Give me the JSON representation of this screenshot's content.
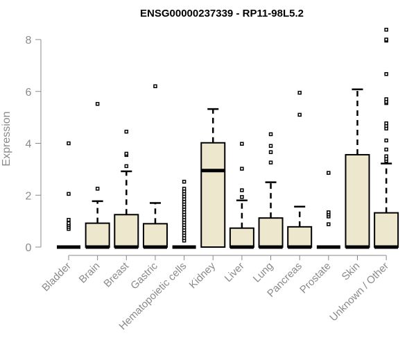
{
  "chart_data": {
    "type": "boxplot",
    "title": "ENSG00000237339 - RP11-98L5.2",
    "xlabel": "",
    "ylabel": "Expression",
    "ylim": [
      0,
      8
    ],
    "yticks": [
      0,
      2,
      4,
      6,
      8
    ],
    "grid": false,
    "box_color": "#ede8cd",
    "categories": [
      "Bladder",
      "Brain",
      "Breast",
      "Gastric",
      "Hematopoietic cells",
      "Kidney",
      "Liver",
      "Lung",
      "Pancreas",
      "Prostate",
      "Skin",
      "Unknown / Other"
    ],
    "boxes": [
      {
        "q1": 0,
        "median": 0,
        "q3": 0,
        "whisker_low": 0,
        "whisker_high": 0,
        "outliers": [
          0.7,
          0.78,
          0.85,
          0.92,
          1.05,
          2.05,
          4.0
        ]
      },
      {
        "q1": 0,
        "median": 0,
        "q3": 0.92,
        "whisker_low": 0,
        "whisker_high": 1.77,
        "outliers": [
          2.25,
          5.52
        ]
      },
      {
        "q1": 0,
        "median": 0,
        "q3": 1.25,
        "whisker_low": 0,
        "whisker_high": 2.92,
        "outliers": [
          3.12,
          3.55,
          3.6,
          4.45
        ]
      },
      {
        "q1": 0,
        "median": 0,
        "q3": 0.9,
        "whisker_low": 0,
        "whisker_high": 1.7,
        "outliers": [
          6.2
        ]
      },
      {
        "q1": 0,
        "median": 0,
        "q3": 0,
        "whisker_low": 0,
        "whisker_high": 0,
        "outliers": [
          0.25,
          0.35,
          0.45,
          0.55,
          0.65,
          0.75,
          0.85,
          0.95,
          1.05,
          1.15,
          1.25,
          1.35,
          1.45,
          1.55,
          1.65,
          1.75,
          1.85,
          1.95,
          2.05,
          2.15,
          2.25,
          2.52
        ]
      },
      {
        "q1": 0,
        "median": 2.95,
        "q3": 4.02,
        "whisker_low": 0,
        "whisker_high": 5.32,
        "outliers": []
      },
      {
        "q1": 0,
        "median": 0,
        "q3": 0.73,
        "whisker_low": 0,
        "whisker_high": 1.8,
        "outliers": [
          1.93,
          2.19,
          3.02,
          3.98
        ]
      },
      {
        "q1": 0,
        "median": 0,
        "q3": 1.12,
        "whisker_low": 0,
        "whisker_high": 2.5,
        "outliers": [
          3.26,
          3.66,
          3.9,
          4.35
        ]
      },
      {
        "q1": 0,
        "median": 0,
        "q3": 0.78,
        "whisker_low": 0,
        "whisker_high": 1.56,
        "outliers": [
          5.1,
          5.95
        ]
      },
      {
        "q1": 0,
        "median": 0,
        "q3": 0,
        "whisker_low": 0,
        "whisker_high": 0,
        "outliers": [
          0.88,
          1.18,
          1.26,
          1.34,
          2.86
        ]
      },
      {
        "q1": 0,
        "median": 0,
        "q3": 3.56,
        "whisker_low": 0,
        "whisker_high": 6.08,
        "outliers": []
      },
      {
        "q1": 0,
        "median": 0,
        "q3": 1.32,
        "whisker_low": 0,
        "whisker_high": 3.22,
        "outliers": [
          3.32,
          3.4,
          3.5,
          3.76,
          4.11,
          4.57,
          4.67,
          4.77,
          5.55,
          5.6,
          5.7,
          6.67,
          7.96,
          8.0,
          8.38
        ]
      }
    ]
  }
}
